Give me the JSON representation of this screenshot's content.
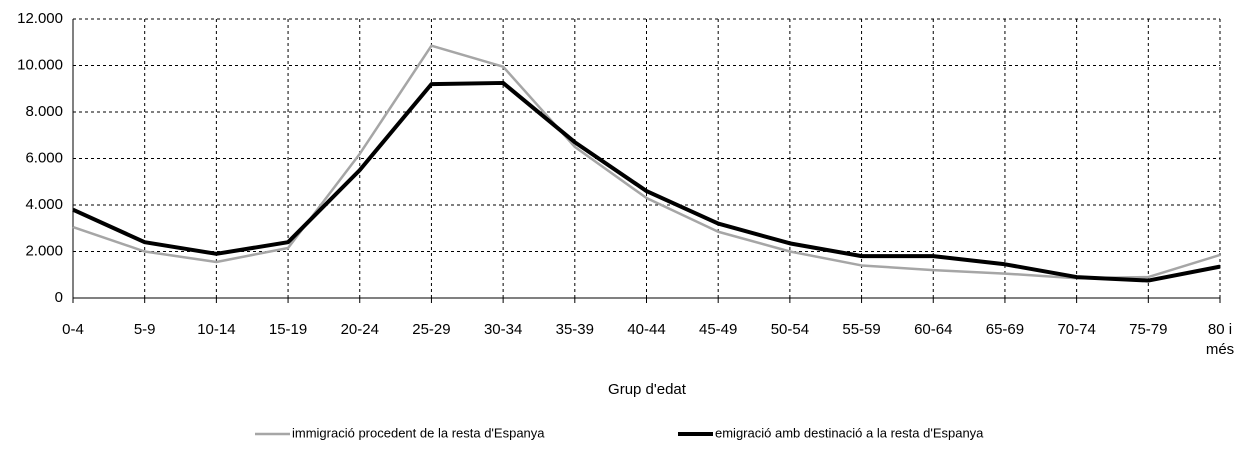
{
  "chart_data": {
    "type": "line",
    "x_label": "Grup d'edat",
    "categories": [
      "0-4",
      "5-9",
      "10-14",
      "15-19",
      "20-24",
      "25-29",
      "30-34",
      "35-39",
      "40-44",
      "45-49",
      "50-54",
      "55-59",
      "60-64",
      "65-69",
      "70-74",
      "75-79",
      "80 i més"
    ],
    "series": [
      {
        "name": "immigració procedent de la resta d'Espanya",
        "color": "#a6a6a6",
        "values": [
          3050,
          2000,
          1550,
          2150,
          6200,
          10850,
          9950,
          6500,
          4300,
          2850,
          2000,
          1400,
          1200,
          1050,
          850,
          900,
          1850
        ]
      },
      {
        "name": "emigració amb destinació a la resta d'Espanya",
        "color": "#000000",
        "values": [
          3800,
          2400,
          1900,
          2400,
          5500,
          9200,
          9250,
          6700,
          4600,
          3200,
          2350,
          1800,
          1800,
          1450,
          900,
          750,
          1350
        ]
      }
    ],
    "ylim": [
      0,
      12000
    ],
    "yticks": [
      0,
      {
        "value": 2000,
        "label": "2.000"
      },
      {
        "value": 4000,
        "label": "4.000"
      },
      {
        "value": 6000,
        "label": "6.000"
      },
      {
        "value": 8000,
        "label": "8.000"
      },
      {
        "value": 10000,
        "label": "10.000"
      },
      {
        "value": 12000,
        "label": "12.000"
      }
    ],
    "grid": true,
    "legend": "bottom"
  }
}
